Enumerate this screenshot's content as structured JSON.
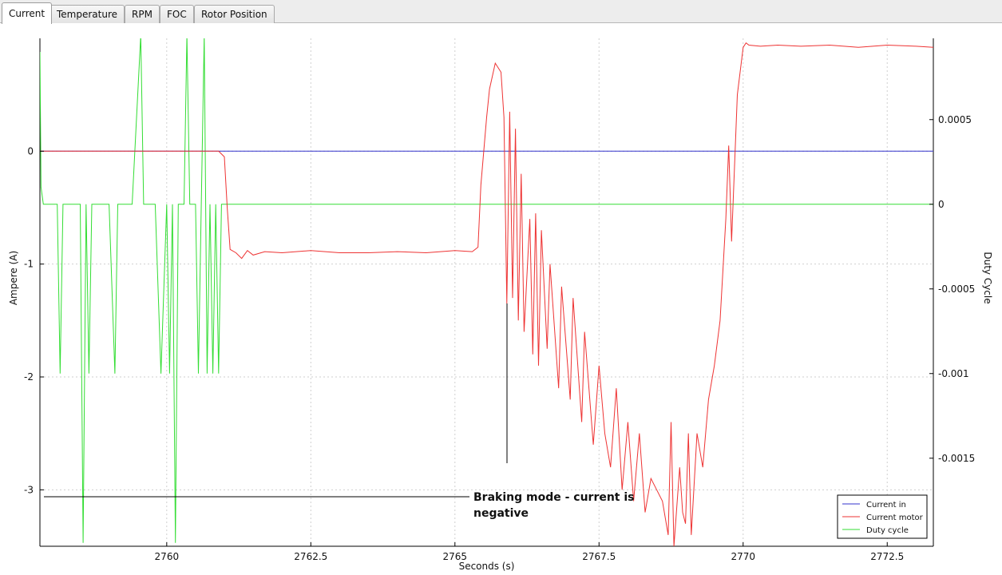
{
  "tabs": [
    {
      "label": "Current",
      "active": true
    },
    {
      "label": "Temperature",
      "active": false
    },
    {
      "label": "RPM",
      "active": false
    },
    {
      "label": "FOC",
      "active": false
    },
    {
      "label": "Rotor Position",
      "active": false
    }
  ],
  "annotation": {
    "line1": "Braking mode - current is",
    "line2": "negative"
  },
  "chart_data": {
    "type": "line",
    "xlabel": "Seconds (s)",
    "ylabel_left": "Ampere (A)",
    "ylabel_right": "Duty Cycle",
    "xlim": [
      2757.8,
      2773.3
    ],
    "ylim_left": [
      -3.5,
      1.0
    ],
    "ylim_right": [
      -0.00202,
      0.00098
    ],
    "x_ticks": [
      2760,
      2762.5,
      2765,
      2767.5,
      2770,
      2772.5
    ],
    "x_tick_labels": [
      "2760",
      "2762.5",
      "2765",
      "2767.5",
      "2770",
      "2772.5"
    ],
    "y_ticks_left": [
      0,
      -1,
      -2,
      -3
    ],
    "y_tick_labels_left": [
      "0",
      "-1",
      "-2",
      "-3"
    ],
    "y_ticks_right": [
      0.0005,
      0,
      -0.0005,
      -0.001,
      -0.0015
    ],
    "y_tick_labels_right": [
      "0.0005",
      "0",
      "-0.0005",
      "-0.001",
      "-0.0015"
    ],
    "grid": true,
    "legend_position": "bottom-right",
    "series": [
      {
        "name": "Current in",
        "axis": "left",
        "color": "#3333cc",
        "x": [
          2757.8,
          2773.3
        ],
        "y": [
          0.0,
          0.0
        ]
      },
      {
        "name": "Current motor",
        "axis": "left",
        "color": "#ee3333",
        "x": [
          2757.8,
          2760.9,
          2761.0,
          2761.05,
          2761.1,
          2761.2,
          2761.3,
          2761.4,
          2761.5,
          2761.7,
          2762.0,
          2762.5,
          2763.0,
          2763.5,
          2764.0,
          2764.5,
          2765.0,
          2765.3,
          2765.4,
          2765.45,
          2765.55,
          2765.6,
          2765.7,
          2765.8,
          2765.85,
          2765.9,
          2765.95,
          2766.0,
          2766.05,
          2766.1,
          2766.15,
          2766.2,
          2766.3,
          2766.35,
          2766.4,
          2766.45,
          2766.5,
          2766.6,
          2766.65,
          2766.8,
          2766.85,
          2767.0,
          2767.05,
          2767.2,
          2767.25,
          2767.4,
          2767.5,
          2767.6,
          2767.7,
          2767.8,
          2767.9,
          2768.0,
          2768.1,
          2768.2,
          2768.3,
          2768.4,
          2768.5,
          2768.6,
          2768.7,
          2768.75,
          2768.8,
          2768.9,
          2768.95,
          2769.0,
          2769.05,
          2769.1,
          2769.2,
          2769.3,
          2769.4,
          2769.5,
          2769.6,
          2769.7,
          2769.75,
          2769.8,
          2769.9,
          2770.0,
          2770.05,
          2770.1,
          2770.3,
          2770.6,
          2771.0,
          2771.5,
          2772.0,
          2772.5,
          2773.0,
          2773.3
        ],
        "y": [
          0.0,
          0.0,
          -0.05,
          -0.5,
          -0.87,
          -0.9,
          -0.95,
          -0.88,
          -0.92,
          -0.89,
          -0.9,
          -0.88,
          -0.9,
          -0.9,
          -0.89,
          -0.9,
          -0.88,
          -0.89,
          -0.85,
          -0.3,
          0.3,
          0.55,
          0.78,
          0.7,
          0.3,
          -1.35,
          0.35,
          -1.3,
          0.2,
          -1.5,
          -0.2,
          -1.6,
          -0.6,
          -1.8,
          -0.55,
          -1.9,
          -0.7,
          -1.75,
          -1.0,
          -2.1,
          -1.2,
          -2.2,
          -1.3,
          -2.4,
          -1.6,
          -2.6,
          -1.9,
          -2.5,
          -2.8,
          -2.1,
          -3.0,
          -2.4,
          -3.1,
          -2.5,
          -3.2,
          -2.9,
          -3.0,
          -3.1,
          -3.4,
          -2.4,
          -3.5,
          -2.8,
          -3.2,
          -3.3,
          -2.5,
          -3.4,
          -2.5,
          -2.8,
          -2.2,
          -1.9,
          -1.5,
          -0.6,
          0.05,
          -0.8,
          0.5,
          0.92,
          0.96,
          0.94,
          0.93,
          0.94,
          0.93,
          0.94,
          0.92,
          0.94,
          0.93,
          0.92
        ]
      },
      {
        "name": "Duty cycle",
        "axis": "right",
        "color": "#33dd33",
        "x": [
          2757.8,
          2757.82,
          2757.86,
          2758.0,
          2758.1,
          2758.15,
          2758.2,
          2758.3,
          2758.5,
          2758.55,
          2758.6,
          2758.65,
          2758.7,
          2759.0,
          2759.1,
          2759.15,
          2759.4,
          2759.55,
          2759.6,
          2759.65,
          2759.8,
          2759.9,
          2760.0,
          2760.05,
          2760.1,
          2760.15,
          2760.2,
          2760.3,
          2760.35,
          2760.4,
          2760.5,
          2760.55,
          2760.6,
          2760.65,
          2760.7,
          2760.75,
          2760.8,
          2760.85,
          2760.9,
          2760.95,
          2761.0,
          2761.05,
          2773.3
        ],
        "y": [
          0.0009,
          0.0001,
          0.0,
          0.0,
          0.0,
          -0.001,
          0.0,
          0.0,
          0.0,
          -0.002,
          0.0,
          -0.001,
          0.0,
          0.0,
          -0.001,
          0.0,
          0.0,
          0.001,
          0.0,
          0.0,
          0.0,
          -0.001,
          0.0,
          -0.001,
          0.0,
          -0.002,
          0.0,
          0.0,
          0.001,
          0.0,
          0.0,
          -0.001,
          0.0,
          0.001,
          -0.001,
          0.0,
          -0.001,
          0.0,
          -0.001,
          0.0,
          0.0,
          0.0,
          0.0
        ]
      }
    ]
  }
}
